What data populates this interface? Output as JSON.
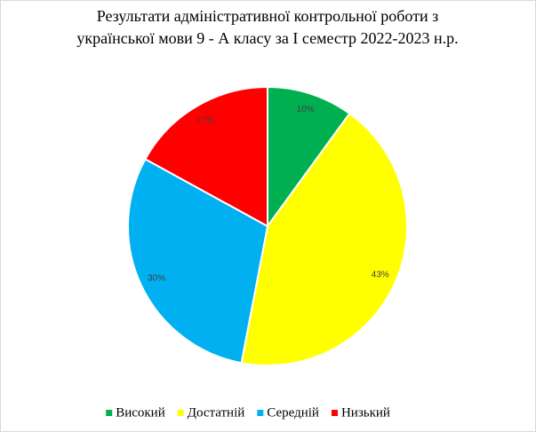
{
  "chart_data": {
    "type": "pie",
    "title": [
      "Результати адміністративної контрольної роботи з",
      "української мови 9 - А класу за І семестр 2022-2023  н.р."
    ],
    "categories": [
      "Високий",
      "Достатній",
      "Середній",
      "Низький"
    ],
    "values": [
      10,
      43,
      30,
      17
    ],
    "value_labels": [
      "10%",
      "43%",
      "30%",
      "17%"
    ],
    "colors": [
      "#00b050",
      "#ffff00",
      "#00b0f0",
      "#ff0000"
    ],
    "legend": "bottom"
  }
}
